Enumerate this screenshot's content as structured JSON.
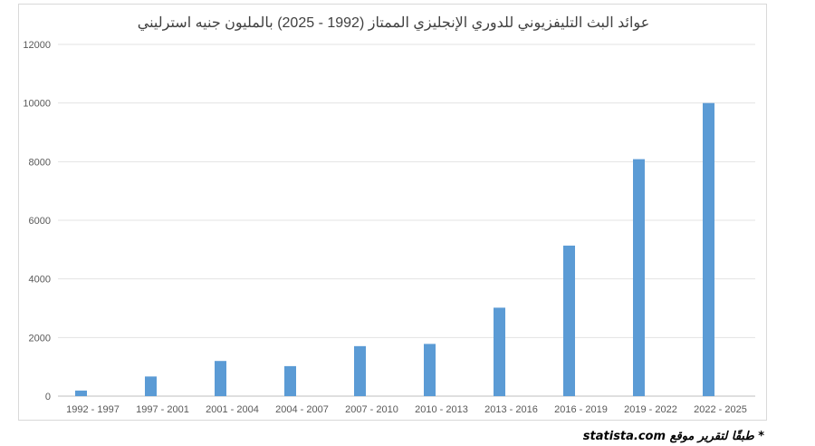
{
  "chart_data": {
    "type": "bar",
    "title": "عوائد البث التليفزيوني للدوري الإنجليزي الممتاز (1992 - 2025) بالمليون جنيه استرليني",
    "categories": [
      "1992 - 1997",
      "1997 - 2001",
      "2001 - 2004",
      "2004 - 2007",
      "2007 - 2010",
      "2010 - 2013",
      "2013 - 2016",
      "2016 - 2019",
      "2019 - 2022",
      "2022 - 2025"
    ],
    "values": [
      191,
      670,
      1200,
      1024,
      1706,
      1782,
      3018,
      5136,
      8085,
      10000
    ],
    "ylim": [
      0,
      12000
    ],
    "yticks": [
      0,
      2000,
      4000,
      6000,
      8000,
      10000,
      12000
    ],
    "grid": true,
    "bar_color": "#5b9bd5",
    "xlabel": "",
    "ylabel": ""
  },
  "source_note": "* طبقًا لتقرير موقع statista.com"
}
